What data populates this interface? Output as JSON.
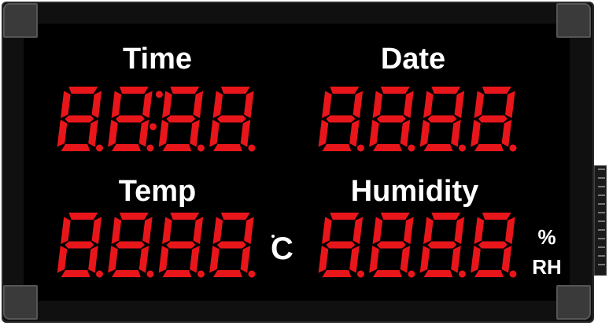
{
  "labels": {
    "time": "Time",
    "date": "Date",
    "temp": "Temp",
    "humidity": "Humidity"
  },
  "units": {
    "temp": "C",
    "humidity_line1": "%",
    "humidity_line2": "RH"
  },
  "colors": {
    "segment_red": "#e8161a",
    "panel": "#000000",
    "label_text": "#ffffff"
  },
  "displays": {
    "time": {
      "digits": 4,
      "colon": true
    },
    "date": {
      "digits": 4,
      "colon": false
    },
    "temp": {
      "digits": 4,
      "colon": false
    },
    "humidity": {
      "digits": 4,
      "colon": false
    }
  }
}
